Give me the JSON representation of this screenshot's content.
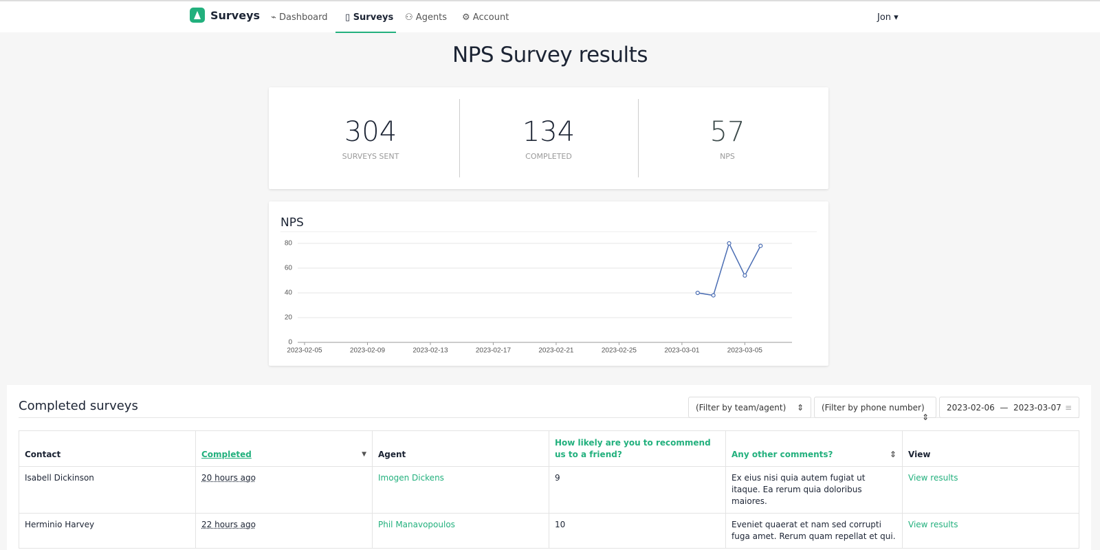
{
  "nav": {
    "brand": "Surveys",
    "items": [
      "Dashboard",
      "Surveys",
      "Agents",
      "Account"
    ],
    "user": "Jon"
  },
  "header": {
    "title": "NPS Survey results"
  },
  "stats": [
    {
      "value": 304,
      "label": "SURVEYS SENT"
    },
    {
      "value": 134,
      "label": "COMPLETED"
    },
    {
      "value": 57,
      "label": "NPS"
    }
  ],
  "chart_data": {
    "type": "line",
    "title": "NPS",
    "x": [
      "2023-03-02",
      "2023-03-03",
      "2023-03-04",
      "2023-03-05",
      "2023-03-06"
    ],
    "values": [
      40,
      38,
      80,
      54,
      78
    ],
    "color": "#4a6db3",
    "xlim": [
      "2023-02-05",
      "2023-03-08"
    ],
    "xticks": [
      "2023-02-05",
      "2023-02-09",
      "2023-02-13",
      "2023-02-17",
      "2023-02-21",
      "2023-02-25",
      "2023-03-01",
      "2023-03-05"
    ],
    "ylim": [
      0,
      80
    ],
    "yticks": [
      0,
      20,
      40,
      60,
      80
    ],
    "grid": true
  },
  "completed": {
    "title": "Completed surveys",
    "filters": [
      "(Filter by team/agent)",
      "(Filter by phone number)"
    ],
    "date_from": "2023-02-06",
    "date_to": "2023-03-07",
    "table": {
      "headers": [
        "Contact",
        "Completed",
        "Agent",
        "How likely are you to recommend us to a friend?",
        "Any other comments?",
        "View"
      ],
      "rows": [
        [
          "Isabell Dickinson",
          "20 hours ago",
          "Imogen Dickens",
          "9",
          "Ex eius nisi quia autem fugiat ut itaque. Ea rerum quia doloribus maiores.",
          "View results"
        ],
        [
          "Herminio Harvey",
          "22 hours ago",
          "Phil Manavopoulos",
          "10",
          "Eveniet quaerat et nam sed corrupti fuga amet. Rerum quam repellat et qui.",
          "View results"
        ]
      ]
    }
  }
}
